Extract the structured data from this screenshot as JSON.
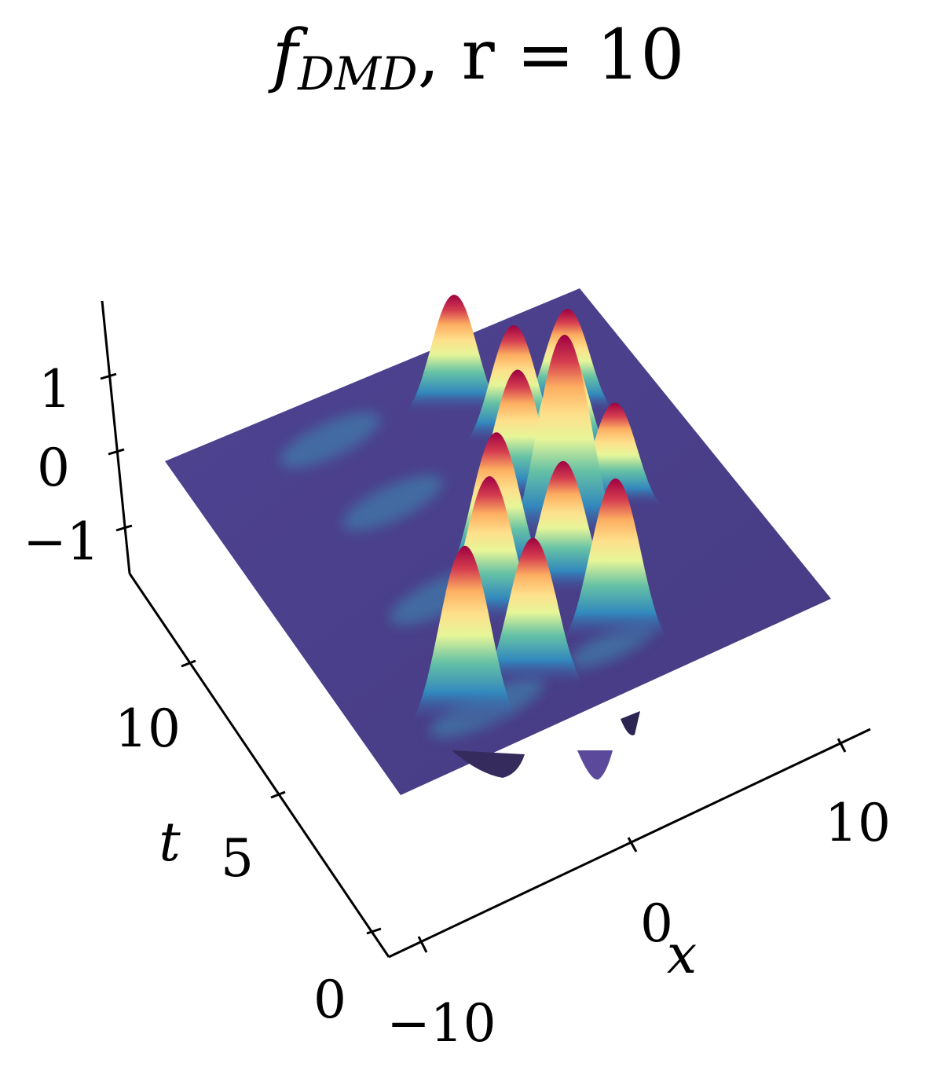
{
  "figure": {
    "title": {
      "f": "f",
      "subscript": "DMD",
      "rest": ", r = 10"
    }
  },
  "chart_data": {
    "type": "surface3d",
    "title": "f_DMD, r = 10",
    "xlabel": "x",
    "ylabel": "t",
    "zlabel": "",
    "xlim": [
      -15,
      15
    ],
    "ylim": [
      0,
      4
    ],
    "zlim": [
      -1.6,
      1.6
    ],
    "x_ticks": [
      -10,
      0,
      10
    ],
    "x_tick_labels": [
      "−10",
      "0",
      "10"
    ],
    "t_ticks": [
      0,
      5,
      10
    ],
    "t_tick_labels": [
      "0",
      "5",
      "10"
    ],
    "z_ticks": [
      -1,
      0,
      1
    ],
    "z_tick_labels": [
      "−1",
      "0",
      "1"
    ],
    "colormap": "Spectral_r",
    "grid": false,
    "legend": "none",
    "surface_peaks": [
      {
        "x": -9,
        "t": 1.2,
        "z": 1.2
      },
      {
        "x": -4,
        "t": 1.4,
        "z": 1.0
      },
      {
        "x": 2,
        "t": 1.6,
        "z": 1.1
      },
      {
        "x": -4,
        "t": 3.8,
        "z": 1.0
      },
      {
        "x": 1,
        "t": 3.7,
        "z": 0.9
      },
      {
        "x": -2,
        "t": 5.0,
        "z": 1.0
      },
      {
        "x": 3,
        "t": 5.2,
        "z": 1.4
      },
      {
        "x": 7,
        "t": 5.6,
        "z": 0.7
      },
      {
        "x": 2,
        "t": 7.0,
        "z": 0.9
      },
      {
        "x": 6,
        "t": 7.5,
        "z": 0.8
      },
      {
        "x": 4,
        "t": 8.8,
        "z": 0.8
      },
      {
        "x": 8,
        "t": 9.0,
        "z": 0.7
      },
      {
        "x": 2,
        "t": 10.5,
        "z": 0.8
      }
    ],
    "colors": {
      "low": "#4a3f8c",
      "mid": "#fefebf",
      "high": "#9e0142"
    }
  }
}
